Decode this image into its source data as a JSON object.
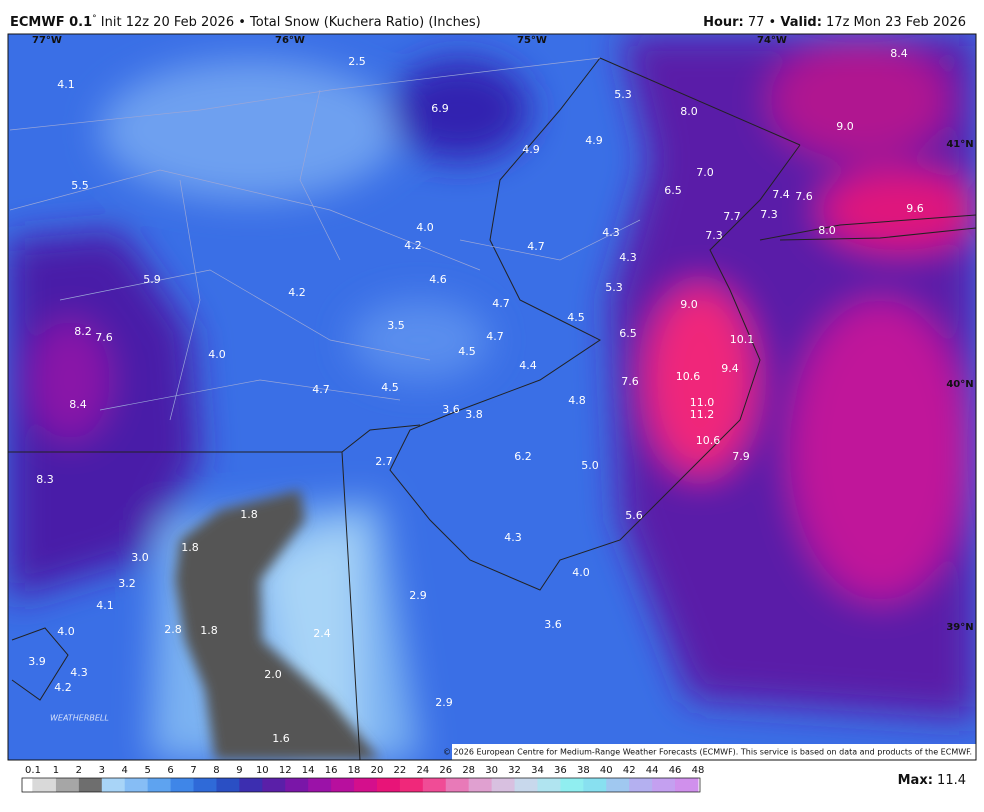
{
  "header": {
    "model": "ECMWF 0.1",
    "degree": "°",
    "description": " Init 12z 20 Feb 2026 • Total Snow (Kuchera Ratio) (Inches)",
    "hour_label": "Hour:",
    "hour": " 77 • ",
    "valid_label": "Valid:",
    "valid": " 17z Mon 23 Feb 2026"
  },
  "map": {
    "coords": [
      "77°W",
      "76°W",
      "75°W",
      "74°W",
      "41°N",
      "40°N",
      "39°N"
    ],
    "values": [
      "2.5",
      "4.1",
      "6.9",
      "5.3",
      "8.0",
      "8.4",
      "9.0",
      "4.9",
      "4.9",
      "7.0",
      "5.5",
      "6.5",
      "7.4",
      "7.6",
      "9.6",
      "7.7",
      "7.3",
      "4.0",
      "8.0",
      "7.3",
      "4.3",
      "4.2",
      "4.7",
      "4.3",
      "5.9",
      "4.6",
      "5.3",
      "4.2",
      "4.7",
      "9.0",
      "4.5",
      "3.5",
      "8.2",
      "7.6",
      "6.5",
      "4.7",
      "10.1",
      "4.0",
      "4.5",
      "4.4",
      "9.4",
      "10.6",
      "7.6",
      "4.7",
      "4.5",
      "4.8",
      "11.0",
      "8.4",
      "3.6",
      "3.8",
      "11.2",
      "10.6",
      "6.2",
      "7.9",
      "2.7",
      "5.0",
      "8.3",
      "1.8",
      "5.6",
      "4.3",
      "1.8",
      "3.0",
      "4.0",
      "3.2",
      "2.9",
      "4.1",
      "3.6",
      "4.0",
      "2.8",
      "1.8",
      "2.4",
      "3.9",
      "4.3",
      "2.0",
      "4.2",
      "2.9",
      "1.6"
    ],
    "logo": "WEATHERBELL",
    "copyright": "© 2026 European Centre for Medium-Range Weather Forecasts (ECMWF). This service is based on data and products of the ECMWF."
  },
  "legend": {
    "ticks": [
      "0.1",
      "1",
      "2",
      "3",
      "4",
      "5",
      "6",
      "7",
      "8",
      "9",
      "10",
      "12",
      "14",
      "16",
      "18",
      "20",
      "22",
      "24",
      "26",
      "28",
      "30",
      "32",
      "34",
      "36",
      "38",
      "40",
      "42",
      "44",
      "46",
      "48"
    ],
    "colors": [
      "#d9d9d9",
      "#a6a6a6",
      "#6e6e6e",
      "#a8d4f7",
      "#86bdf5",
      "#5ea3f0",
      "#3f86e8",
      "#2f6ad8",
      "#2a4fc4",
      "#3c2eb0",
      "#5a1fa8",
      "#7a16a8",
      "#9b12a8",
      "#b80f9e",
      "#d40f8c",
      "#e81478",
      "#f0287a",
      "#f04c96",
      "#e87ab8",
      "#e0a0d0",
      "#d8c0e0",
      "#c8d8ec",
      "#b0e4f0",
      "#90eef0",
      "#88e0f0",
      "#a0c8f0",
      "#b4b0f0",
      "#c4a0f0",
      "#d090ec"
    ],
    "max_label": "Max:",
    "max": " 11.4"
  }
}
